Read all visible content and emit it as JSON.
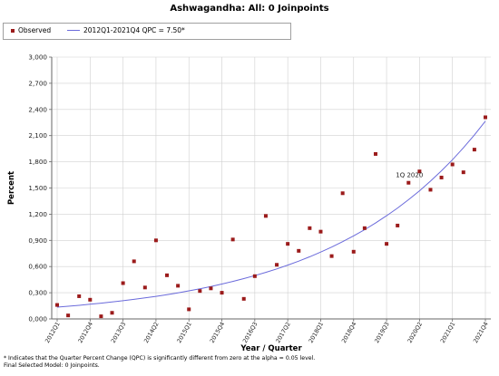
{
  "title": "Ashwagandha: All: 0 Joinpoints",
  "legend": {
    "observed_label": "Observed",
    "fit_label": "2012Q1-2021Q4 QPC = 7.50*"
  },
  "footnote": {
    "line1": "* Indicates that the Quarter Percent Change (QPC) is significantly different from zero at the alpha = 0.05 level.",
    "line2": "Final Selected Model: 0 Joinpoints."
  },
  "colors": {
    "observed": "#9b1b1b",
    "fit": "#6a6adb",
    "grid": "#d0d0d0",
    "axis": "#666666"
  },
  "chart_data": {
    "type": "scatter",
    "title": "Ashwagandha: All: 0 Joinpoints",
    "xlabel": "Year / Quarter",
    "ylabel": "Percent",
    "ylim": [
      0,
      3.0
    ],
    "yticks": [
      "0,000",
      "0,300",
      "0,600",
      "0,900",
      "1,200",
      "1,500",
      "1,800",
      "2,100",
      "2,400",
      "2,700",
      "3,000"
    ],
    "grid": true,
    "legend_position": "top-left",
    "xtick_labels": [
      {
        "i": 0,
        "label": "2012Q1"
      },
      {
        "i": 3,
        "label": "2012Q4"
      },
      {
        "i": 6,
        "label": "2013Q3"
      },
      {
        "i": 9,
        "label": "2014Q2"
      },
      {
        "i": 12,
        "label": "2015Q1"
      },
      {
        "i": 15,
        "label": "2015Q4"
      },
      {
        "i": 18,
        "label": "2016Q3"
      },
      {
        "i": 21,
        "label": "2017Q2"
      },
      {
        "i": 24,
        "label": "2018Q1"
      },
      {
        "i": 27,
        "label": "2018Q4"
      },
      {
        "i": 30,
        "label": "2019Q3"
      },
      {
        "i": 33,
        "label": "2020Q2"
      },
      {
        "i": 36,
        "label": "2021Q1"
      },
      {
        "i": 39,
        "label": "2021Q4"
      }
    ],
    "series": [
      {
        "name": "Observed",
        "type": "scatter",
        "values": [
          0.16,
          0.04,
          0.26,
          0.22,
          0.03,
          0.07,
          0.41,
          0.66,
          0.36,
          0.9,
          0.5,
          0.38,
          0.11,
          0.32,
          0.35,
          0.3,
          0.91,
          0.23,
          0.49,
          1.18,
          0.62,
          0.86,
          0.78,
          1.04,
          1.0,
          0.72,
          1.44,
          0.77,
          1.04,
          1.89,
          0.86,
          1.07,
          1.56,
          1.69,
          1.48,
          1.62,
          1.77,
          1.68,
          1.94,
          2.31
        ]
      },
      {
        "name": "2012Q1-2021Q4 QPC = 7.50*",
        "type": "line",
        "start": 0.135,
        "qpc_percent": 7.5
      }
    ],
    "annotations": [
      {
        "text": "1Q 2020",
        "i": 32,
        "value": 1.56
      }
    ]
  }
}
